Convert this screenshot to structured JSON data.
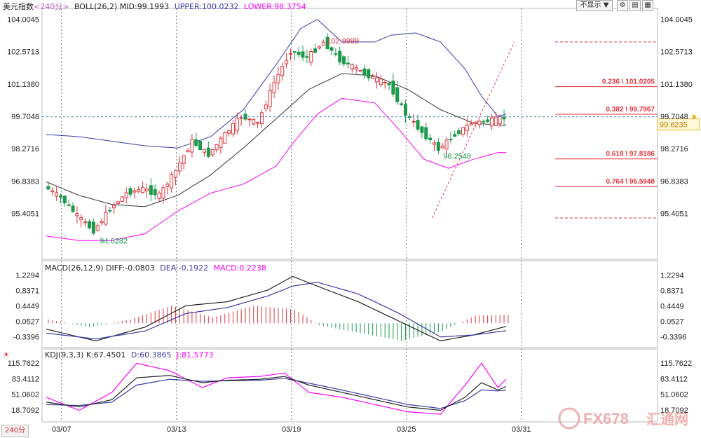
{
  "header": {
    "symbol": "美元指数",
    "period": "<240分>",
    "boll_label": "BOLL(26,2)",
    "mid": "MID:99.1993",
    "upper": "UPPER:100.0232",
    "lower": "LOWER:98.3754"
  },
  "controls": {
    "dropdown": "不显示",
    "arrow": "▼"
  },
  "timeframe_button": "240分",
  "watermark": {
    "text": "FX678",
    "cn": "汇通网"
  },
  "colors": {
    "up": "#e0323a",
    "down": "#1a9a4a",
    "upper": "#3a3aa8",
    "lower": "#ff00ff",
    "mid": "#333333",
    "fib": "#e0323a"
  },
  "price_axis": {
    "ticks": [
      "104.0045",
      "102.5713",
      "101.1380",
      "99.7048",
      "98.2716",
      "96.8383",
      "95.4051"
    ],
    "current": "99.6235"
  },
  "annotations": {
    "high": "102.9999",
    "low1": "94.6282",
    "low2": "98.2548"
  },
  "fib_levels": [
    {
      "label": "0.236 \\ 101.0205",
      "value": 101.0205
    },
    {
      "label": "0.382 \\ 99.7967",
      "value": 99.7967
    },
    {
      "label": "0.618 \\ 97.8186",
      "value": 97.8186
    },
    {
      "label": "0.764 \\ 96.5948",
      "value": 96.5948
    }
  ],
  "macd_header": {
    "label": "MACD(26,12,9)",
    "diff": "DIFF:-0.0803",
    "dea": "DEA:-0.1922",
    "macd": "MACD:0.2238"
  },
  "macd_axis": {
    "ticks": [
      "1.2294",
      "0.8371",
      "0.4449",
      "0.0527",
      "-0.3396"
    ]
  },
  "kdj_header": {
    "label": "KDJ(9,3,3)",
    "k": "K:67.4501",
    "d": "D:60.3865",
    "j": "J:81.5773"
  },
  "kdj_axis": {
    "ticks": [
      "115.7622",
      "83.4112",
      "51.0602",
      "18.7092"
    ]
  },
  "dates": [
    "03/07",
    "03/13",
    "03/19",
    "03/25",
    "03/31"
  ],
  "chart_data": {
    "type": "candlestick",
    "title": "美元指数 240分",
    "ylim": [
      94.3,
      104.3
    ],
    "x": [
      "03/07",
      "03/13",
      "03/19",
      "03/25",
      "03/31"
    ],
    "price_path": [
      [
        0,
        96.6
      ],
      [
        4,
        96.1
      ],
      [
        8,
        95.3
      ],
      [
        12,
        94.6282
      ],
      [
        16,
        95.6
      ],
      [
        20,
        96.3
      ],
      [
        24,
        96.5
      ],
      [
        28,
        96.2
      ],
      [
        32,
        97.3
      ],
      [
        36,
        98.6
      ],
      [
        40,
        98.0
      ],
      [
        44,
        98.9
      ],
      [
        48,
        99.7
      ],
      [
        52,
        99.4
      ],
      [
        56,
        101.2
      ],
      [
        60,
        102.6
      ],
      [
        64,
        102.3
      ],
      [
        68,
        102.9999
      ],
      [
        72,
        102.2
      ],
      [
        76,
        101.8
      ],
      [
        80,
        101.4
      ],
      [
        84,
        101.1
      ],
      [
        88,
        99.8
      ],
      [
        92,
        99.0
      ],
      [
        96,
        98.2548
      ],
      [
        100,
        98.9
      ],
      [
        104,
        99.4
      ],
      [
        108,
        99.5
      ],
      [
        112,
        99.6235
      ]
    ],
    "boll_upper": [
      [
        0,
        98.9
      ],
      [
        8,
        98.8
      ],
      [
        16,
        98.6
      ],
      [
        24,
        98.4
      ],
      [
        32,
        98.3
      ],
      [
        40,
        98.8
      ],
      [
        48,
        100.0
      ],
      [
        56,
        102.0
      ],
      [
        62,
        103.6
      ],
      [
        66,
        104.0
      ],
      [
        72,
        103.0
      ],
      [
        80,
        103.0
      ],
      [
        84,
        103.3
      ],
      [
        90,
        103.4
      ],
      [
        96,
        103.0
      ],
      [
        102,
        101.8
      ],
      [
        106,
        100.6
      ],
      [
        110,
        99.7
      ],
      [
        112,
        99.8
      ]
    ],
    "boll_mid": [
      [
        0,
        96.8
      ],
      [
        8,
        96.2
      ],
      [
        16,
        95.8
      ],
      [
        24,
        95.7
      ],
      [
        32,
        96.2
      ],
      [
        40,
        97.1
      ],
      [
        48,
        98.3
      ],
      [
        56,
        99.6
      ],
      [
        64,
        100.9
      ],
      [
        72,
        101.6
      ],
      [
        80,
        101.5
      ],
      [
        88,
        100.9
      ],
      [
        96,
        100.0
      ],
      [
        104,
        99.4
      ],
      [
        112,
        99.3
      ]
    ],
    "boll_lower": [
      [
        0,
        94.4
      ],
      [
        8,
        94.2
      ],
      [
        16,
        94.2
      ],
      [
        24,
        94.5
      ],
      [
        32,
        95.5
      ],
      [
        40,
        96.3
      ],
      [
        48,
        96.7
      ],
      [
        56,
        97.5
      ],
      [
        60,
        98.5
      ],
      [
        66,
        99.8
      ],
      [
        72,
        100.5
      ],
      [
        80,
        100.3
      ],
      [
        86,
        99.1
      ],
      [
        92,
        97.8
      ],
      [
        98,
        97.4
      ],
      [
        104,
        97.8
      ],
      [
        110,
        98.1
      ],
      [
        112,
        98.1
      ]
    ],
    "fib_projection": {
      "from": [
        94,
        95.2
      ],
      "to": [
        114,
        103.0
      ]
    },
    "macd": {
      "ylim": [
        -0.55,
        1.35
      ],
      "diff": [
        [
          0,
          -0.15
        ],
        [
          12,
          -0.45
        ],
        [
          24,
          -0.1
        ],
        [
          34,
          0.45
        ],
        [
          44,
          0.55
        ],
        [
          54,
          0.85
        ],
        [
          60,
          1.2
        ],
        [
          66,
          0.95
        ],
        [
          76,
          0.55
        ],
        [
          86,
          0.05
        ],
        [
          96,
          -0.45
        ],
        [
          104,
          -0.3
        ],
        [
          112,
          -0.08
        ]
      ],
      "dea": [
        [
          0,
          -0.25
        ],
        [
          12,
          -0.4
        ],
        [
          24,
          -0.2
        ],
        [
          34,
          0.25
        ],
        [
          44,
          0.4
        ],
        [
          54,
          0.7
        ],
        [
          60,
          0.95
        ],
        [
          66,
          1.05
        ],
        [
          76,
          0.75
        ],
        [
          86,
          0.25
        ],
        [
          96,
          -0.35
        ],
        [
          104,
          -0.3
        ],
        [
          112,
          -0.19
        ]
      ],
      "hist": [
        [
          0,
          0.1
        ],
        [
          10,
          -0.1
        ],
        [
          20,
          0.1
        ],
        [
          30,
          0.45
        ],
        [
          40,
          0.15
        ],
        [
          50,
          0.45
        ],
        [
          60,
          0.35
        ],
        [
          66,
          -0.05
        ],
        [
          76,
          -0.25
        ],
        [
          86,
          -0.45
        ],
        [
          96,
          -0.2
        ],
        [
          104,
          0.2
        ],
        [
          112,
          0.22
        ]
      ]
    },
    "kdj": {
      "ylim": [
        0,
        130
      ],
      "k": [
        [
          0,
          35
        ],
        [
          8,
          25
        ],
        [
          16,
          40
        ],
        [
          22,
          85
        ],
        [
          30,
          90
        ],
        [
          38,
          75
        ],
        [
          44,
          80
        ],
        [
          52,
          82
        ],
        [
          58,
          88
        ],
        [
          64,
          70
        ],
        [
          72,
          55
        ],
        [
          80,
          40
        ],
        [
          88,
          25
        ],
        [
          96,
          18
        ],
        [
          102,
          45
        ],
        [
          106,
          75
        ],
        [
          110,
          60
        ],
        [
          112,
          67
        ]
      ],
      "d": [
        [
          0,
          30
        ],
        [
          8,
          28
        ],
        [
          16,
          35
        ],
        [
          22,
          70
        ],
        [
          30,
          82
        ],
        [
          38,
          78
        ],
        [
          44,
          79
        ],
        [
          52,
          80
        ],
        [
          58,
          84
        ],
        [
          64,
          74
        ],
        [
          72,
          60
        ],
        [
          80,
          45
        ],
        [
          88,
          30
        ],
        [
          96,
          22
        ],
        [
          102,
          38
        ],
        [
          106,
          60
        ],
        [
          110,
          58
        ],
        [
          112,
          60
        ]
      ],
      "j": [
        [
          0,
          45
        ],
        [
          8,
          18
        ],
        [
          16,
          55
        ],
        [
          22,
          115
        ],
        [
          30,
          100
        ],
        [
          38,
          65
        ],
        [
          44,
          85
        ],
        [
          52,
          88
        ],
        [
          58,
          95
        ],
        [
          64,
          55
        ],
        [
          72,
          45
        ],
        [
          80,
          30
        ],
        [
          88,
          15
        ],
        [
          96,
          10
        ],
        [
          102,
          70
        ],
        [
          106,
          115
        ],
        [
          110,
          65
        ],
        [
          112,
          82
        ]
      ]
    }
  }
}
